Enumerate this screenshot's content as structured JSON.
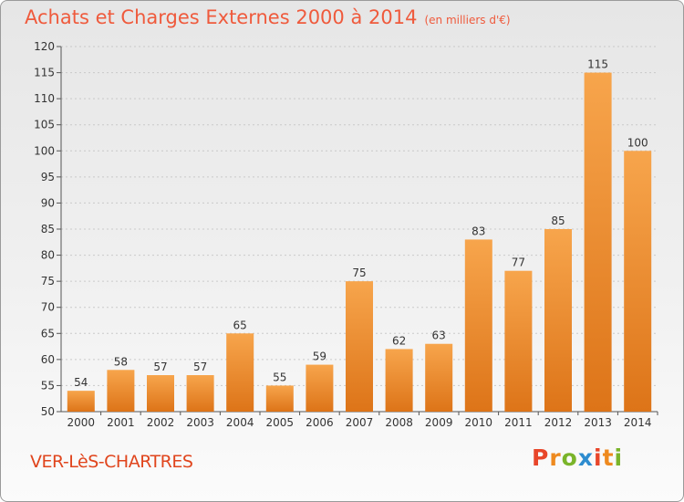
{
  "header": {
    "title": "Achats et Charges Externes 2000 à 2014",
    "unit": "(en milliers d'€)"
  },
  "footer": {
    "city": "VER-LèS-CHARTRES",
    "logo_letters": [
      "P",
      "r",
      "o",
      "x",
      "i",
      "t",
      "i"
    ],
    "logo_colors": [
      "#e8462a",
      "#ee8a1f",
      "#7ab42a",
      "#2d8ccf",
      "#e8462a",
      "#ee8a1f",
      "#7ab42a"
    ]
  },
  "colors": {
    "bar_light": "#f7a54c",
    "bar_dark": "#dd7418",
    "title": "#ef5a3c"
  },
  "chart_data": {
    "type": "bar",
    "title": "Achats et Charges Externes 2000 à 2014",
    "subtitle": "(en milliers d'€)",
    "categories": [
      "2000",
      "2001",
      "2002",
      "2003",
      "2004",
      "2005",
      "2006",
      "2007",
      "2008",
      "2009",
      "2010",
      "2011",
      "2012",
      "2013",
      "2014"
    ],
    "values": [
      54,
      58,
      57,
      57,
      65,
      55,
      59,
      75,
      62,
      63,
      83,
      77,
      85,
      115,
      100
    ],
    "ylim": [
      50,
      120
    ],
    "yticks": [
      50,
      55,
      60,
      65,
      70,
      75,
      80,
      85,
      90,
      95,
      100,
      105,
      110,
      115,
      120
    ],
    "grid": true,
    "legend": "none"
  }
}
